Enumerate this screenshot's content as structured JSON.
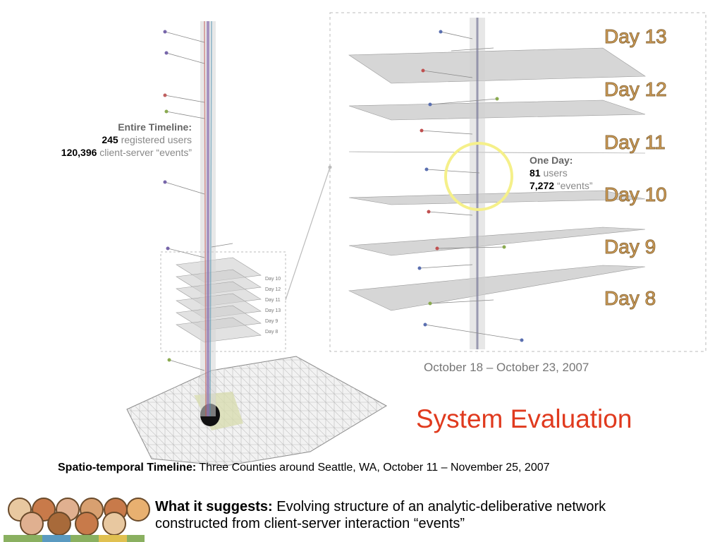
{
  "left_caption": {
    "heading": "Entire Timeline:",
    "users_num": "245",
    "users_text": "registered users",
    "events_num": "120,396",
    "events_text": "client-server “events”"
  },
  "right_caption": {
    "heading": "One Day:",
    "users_num": "81",
    "users_text": "users",
    "events_num": "7,272",
    "events_text": "“events”"
  },
  "day_labels": [
    "Day 13",
    "Day 12",
    "Day 11",
    "Day 10",
    "Day 9",
    "Day 8"
  ],
  "small_day_labels": [
    "Day 10",
    "Day 12",
    "Day 11",
    "Day 13",
    "Day 9",
    "Day 8"
  ],
  "date_range": "October 18 – October 23, 2007",
  "title": "System Evaluation",
  "subtitle": {
    "bold": "Spatio-temporal Timeline:",
    "text": "Three Counties around Seattle, WA, October 11 – November 25, 2007"
  },
  "suggests": {
    "bold": "What it suggests:",
    "line1": "Evolving structure of an analytic-deliberative network",
    "line2": "constructed from client-server interaction “events”"
  },
  "colors": {
    "title": "#e03a1e",
    "day_label": "#d9a35a",
    "highlight_circle": "#f5f08a",
    "plane": "#c8c8c8"
  },
  "icon": "people-group-icon"
}
